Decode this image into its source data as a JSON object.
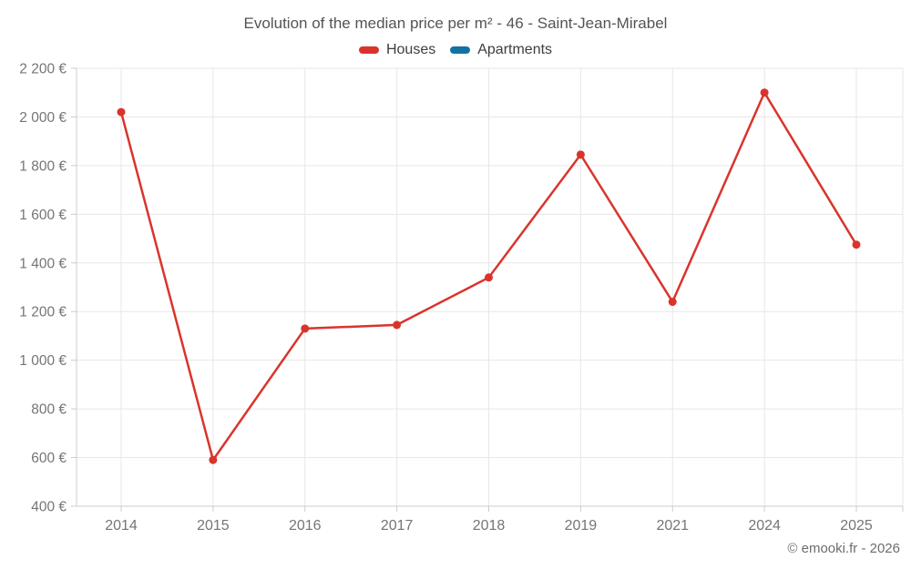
{
  "header": {
    "title": "Evolution of the median price per m² - 46 - Saint-Jean-Mirabel"
  },
  "legend": [
    {
      "label": "Houses",
      "color": "#d9342c"
    },
    {
      "label": "Apartments",
      "color": "#1273a3"
    }
  ],
  "footer": {
    "copyright": "© emooki.fr - 2026"
  },
  "colors": {
    "houses": "#d9342c",
    "apartments": "#1273a3",
    "gridline": "#e7e7e7",
    "axis": "#cccccc",
    "tick_label": "#757575",
    "title_text": "#545454"
  },
  "chart_data": {
    "type": "line",
    "title": "Evolution of the median price per m² - 46 - Saint-Jean-Mirabel",
    "categories": [
      "2014",
      "2015",
      "2016",
      "2017",
      "2018",
      "2019",
      "2021",
      "2024",
      "2025"
    ],
    "series": [
      {
        "name": "Houses",
        "color": "#d9342c",
        "values": [
          2020,
          590,
          1130,
          1145,
          1340,
          1845,
          1240,
          2100,
          1475
        ]
      },
      {
        "name": "Apartments",
        "color": "#1273a3",
        "values": []
      }
    ],
    "xlabel": "",
    "ylabel": "",
    "ylim": [
      400,
      2200
    ],
    "ytick_step": 200,
    "ytick_suffix": " €",
    "grid": true,
    "legend_position": "top",
    "legend_entries": [
      "Houses",
      "Apartments"
    ]
  }
}
